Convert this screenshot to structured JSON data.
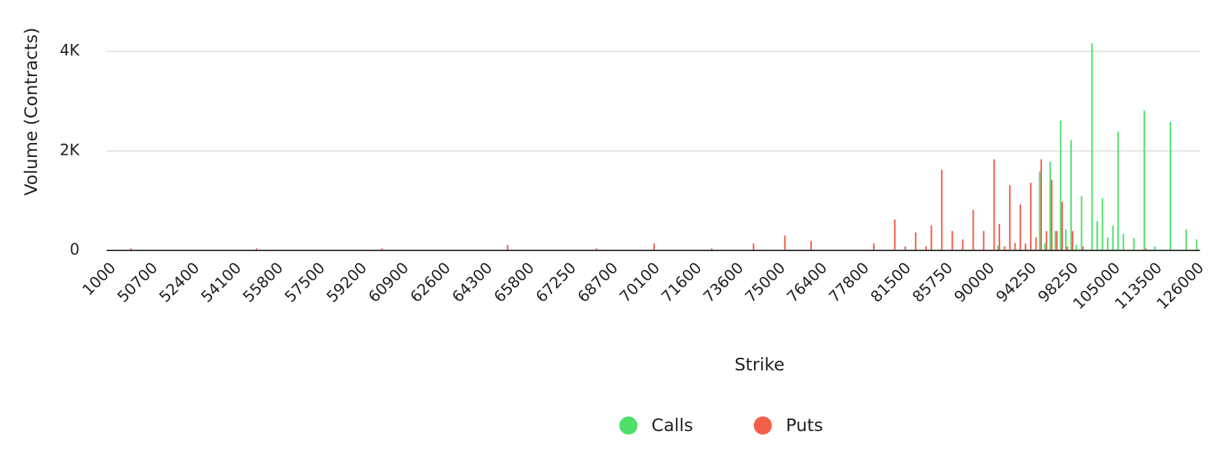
{
  "chart_data": {
    "type": "bar",
    "x_label": "Strike",
    "y_label": "Volume (Contracts)",
    "categories": [
      "1000",
      null,
      null,
      null,
      null,
      null,
      null,
      null,
      "50700",
      null,
      null,
      null,
      null,
      null,
      null,
      null,
      "52400",
      null,
      null,
      null,
      null,
      null,
      null,
      null,
      "54100",
      null,
      null,
      null,
      null,
      null,
      null,
      null,
      "55800",
      null,
      null,
      null,
      null,
      null,
      null,
      null,
      "57500",
      null,
      null,
      null,
      null,
      null,
      null,
      null,
      "59200",
      null,
      null,
      null,
      null,
      null,
      null,
      null,
      "60900",
      null,
      null,
      null,
      null,
      null,
      null,
      null,
      "62600",
      null,
      null,
      null,
      null,
      null,
      null,
      null,
      "64300",
      null,
      null,
      null,
      null,
      null,
      null,
      null,
      "65800",
      null,
      null,
      null,
      null,
      null,
      null,
      null,
      "67250",
      null,
      null,
      null,
      null,
      null,
      null,
      null,
      "68700",
      null,
      null,
      null,
      null,
      null,
      null,
      null,
      "70100",
      null,
      null,
      null,
      null,
      null,
      null,
      null,
      "71600",
      null,
      null,
      null,
      null,
      null,
      null,
      null,
      "73600",
      null,
      null,
      null,
      null,
      null,
      null,
      null,
      "75000",
      null,
      null,
      null,
      null,
      null,
      null,
      null,
      "76400",
      null,
      null,
      null,
      null,
      null,
      null,
      null,
      "77800",
      null,
      null,
      null,
      null,
      null,
      null,
      null,
      "81500",
      null,
      null,
      null,
      null,
      null,
      null,
      null,
      "85750",
      null,
      null,
      null,
      null,
      null,
      null,
      null,
      "90000",
      null,
      null,
      null,
      null,
      null,
      null,
      null,
      "94250",
      null,
      null,
      null,
      null,
      null,
      null,
      null,
      "98250",
      null,
      null,
      null,
      null,
      null,
      null,
      null,
      "105000",
      null,
      null,
      null,
      null,
      null,
      null,
      null,
      "113500",
      null,
      null,
      null,
      null,
      null,
      null,
      null,
      "126000"
    ],
    "series": [
      {
        "name": "Calls",
        "color": "#4fe06b",
        "values": [
          0,
          0,
          0,
          0,
          0,
          0,
          0,
          0,
          0,
          0,
          0,
          0,
          0,
          0,
          0,
          0,
          0,
          0,
          0,
          0,
          0,
          0,
          0,
          0,
          0,
          0,
          0,
          0,
          0,
          0,
          0,
          0,
          0,
          0,
          0,
          0,
          0,
          0,
          0,
          0,
          0,
          0,
          0,
          0,
          0,
          0,
          0,
          0,
          0,
          0,
          0,
          0,
          0,
          0,
          0,
          0,
          0,
          0,
          0,
          0,
          0,
          0,
          0,
          0,
          0,
          0,
          0,
          0,
          0,
          0,
          0,
          0,
          0,
          0,
          0,
          0,
          0,
          0,
          0,
          0,
          0,
          0,
          0,
          0,
          0,
          0,
          0,
          0,
          0,
          0,
          0,
          0,
          0,
          0,
          0,
          0,
          0,
          0,
          0,
          0,
          0,
          0,
          0,
          0,
          0,
          0,
          0,
          0,
          0,
          0,
          0,
          0,
          0,
          0,
          0,
          0,
          0,
          0,
          0,
          0,
          0,
          0,
          0,
          0,
          0,
          0,
          0,
          0,
          0,
          0,
          0,
          0,
          0,
          0,
          0,
          0,
          0,
          0,
          0,
          0,
          0,
          0,
          0,
          0,
          0,
          0,
          0,
          0,
          0,
          0,
          0,
          0,
          0,
          0,
          0,
          0,
          0,
          0,
          0,
          0,
          0,
          0,
          0,
          0,
          0,
          0,
          0,
          0,
          0,
          0,
          100,
          0,
          0,
          0,
          0,
          0,
          0,
          0,
          1590,
          140,
          1780,
          390,
          2610,
          420,
          2220,
          110,
          1090,
          0,
          4160,
          590,
          1050,
          260,
          500,
          2390,
          330,
          0,
          250,
          0,
          2810,
          0,
          80,
          0,
          0,
          2580,
          0,
          0,
          420,
          0,
          220
        ]
      },
      {
        "name": "Puts",
        "color": "#f2604a",
        "values": [
          0,
          0,
          0,
          0,
          40,
          0,
          0,
          0,
          0,
          0,
          0,
          0,
          0,
          0,
          0,
          0,
          0,
          0,
          0,
          0,
          0,
          0,
          0,
          0,
          0,
          0,
          0,
          0,
          40,
          0,
          0,
          0,
          0,
          0,
          0,
          0,
          0,
          0,
          0,
          0,
          0,
          0,
          0,
          0,
          0,
          0,
          0,
          0,
          0,
          0,
          0,
          0,
          40,
          0,
          0,
          0,
          0,
          0,
          0,
          0,
          0,
          0,
          0,
          0,
          0,
          0,
          0,
          0,
          0,
          0,
          0,
          0,
          0,
          0,
          0,
          0,
          110,
          0,
          0,
          0,
          0,
          0,
          0,
          0,
          0,
          0,
          0,
          0,
          0,
          0,
          0,
          0,
          0,
          40,
          0,
          0,
          0,
          0,
          0,
          0,
          0,
          0,
          0,
          0,
          140,
          0,
          0,
          0,
          0,
          0,
          0,
          0,
          0,
          0,
          0,
          40,
          0,
          0,
          0,
          0,
          0,
          0,
          0,
          140,
          0,
          0,
          0,
          0,
          0,
          300,
          0,
          0,
          0,
          0,
          190,
          0,
          0,
          0,
          0,
          0,
          0,
          0,
          0,
          0,
          0,
          0,
          140,
          0,
          0,
          0,
          620,
          0,
          80,
          0,
          360,
          0,
          80,
          500,
          0,
          1620,
          0,
          390,
          0,
          220,
          0,
          810,
          0,
          390,
          0,
          1830,
          530,
          80,
          1310,
          150,
          920,
          140,
          1360,
          260,
          1830,
          390,
          1420,
          390,
          980,
          80,
          390,
          0,
          80,
          0,
          0,
          0,
          0,
          0,
          0,
          0,
          0,
          0,
          0,
          0,
          40,
          0,
          0,
          0,
          0,
          0,
          0,
          0,
          0,
          0,
          0
        ]
      }
    ],
    "ylim": [
      0,
      4500
    ],
    "yticks": [
      0,
      {
        "value": 2000,
        "label": "2K"
      },
      {
        "value": 4000,
        "label": "4K"
      }
    ],
    "grid": true
  }
}
